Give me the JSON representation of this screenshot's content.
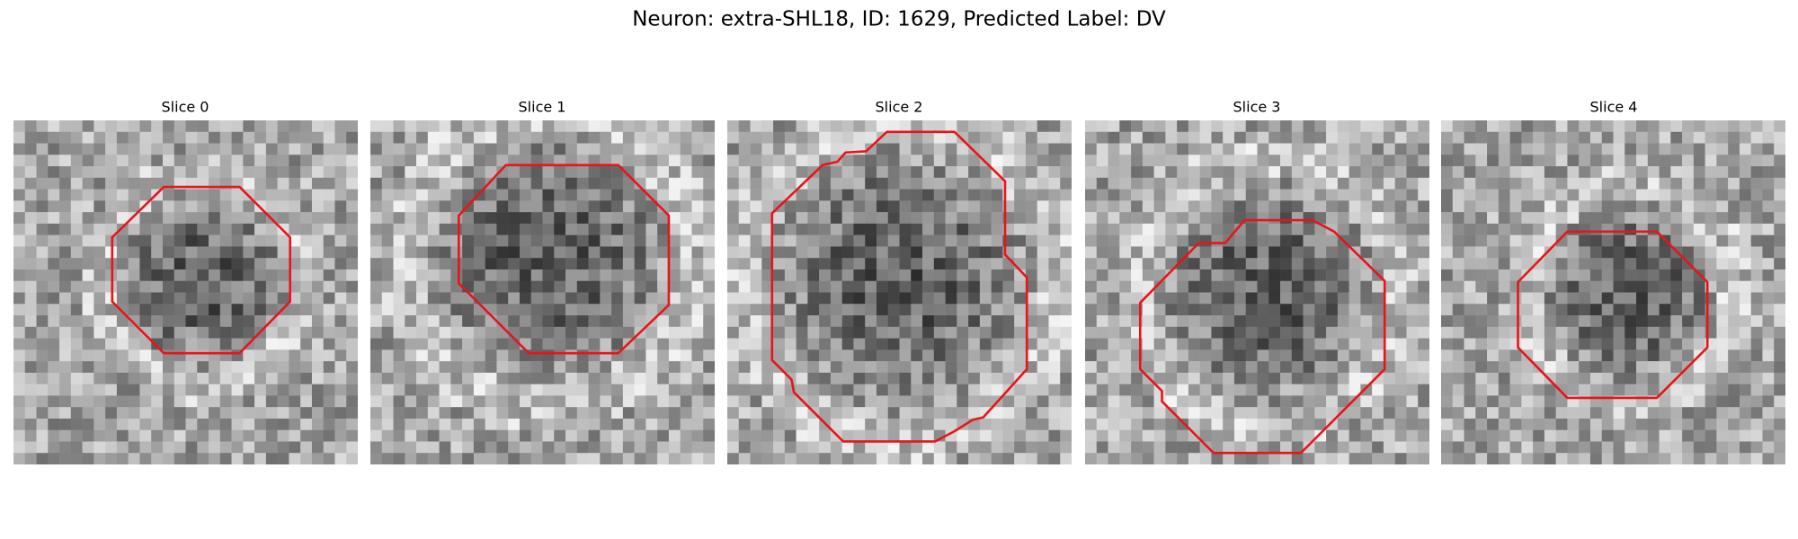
{
  "title": "Neuron: extra-SHL18, ID: 1629, Predicted Label: DV",
  "panels": [
    {
      "title": "Slice 0"
    },
    {
      "title": "Slice 1"
    },
    {
      "title": "Slice 2"
    },
    {
      "title": "Slice 3"
    },
    {
      "title": "Slice 4"
    }
  ]
}
